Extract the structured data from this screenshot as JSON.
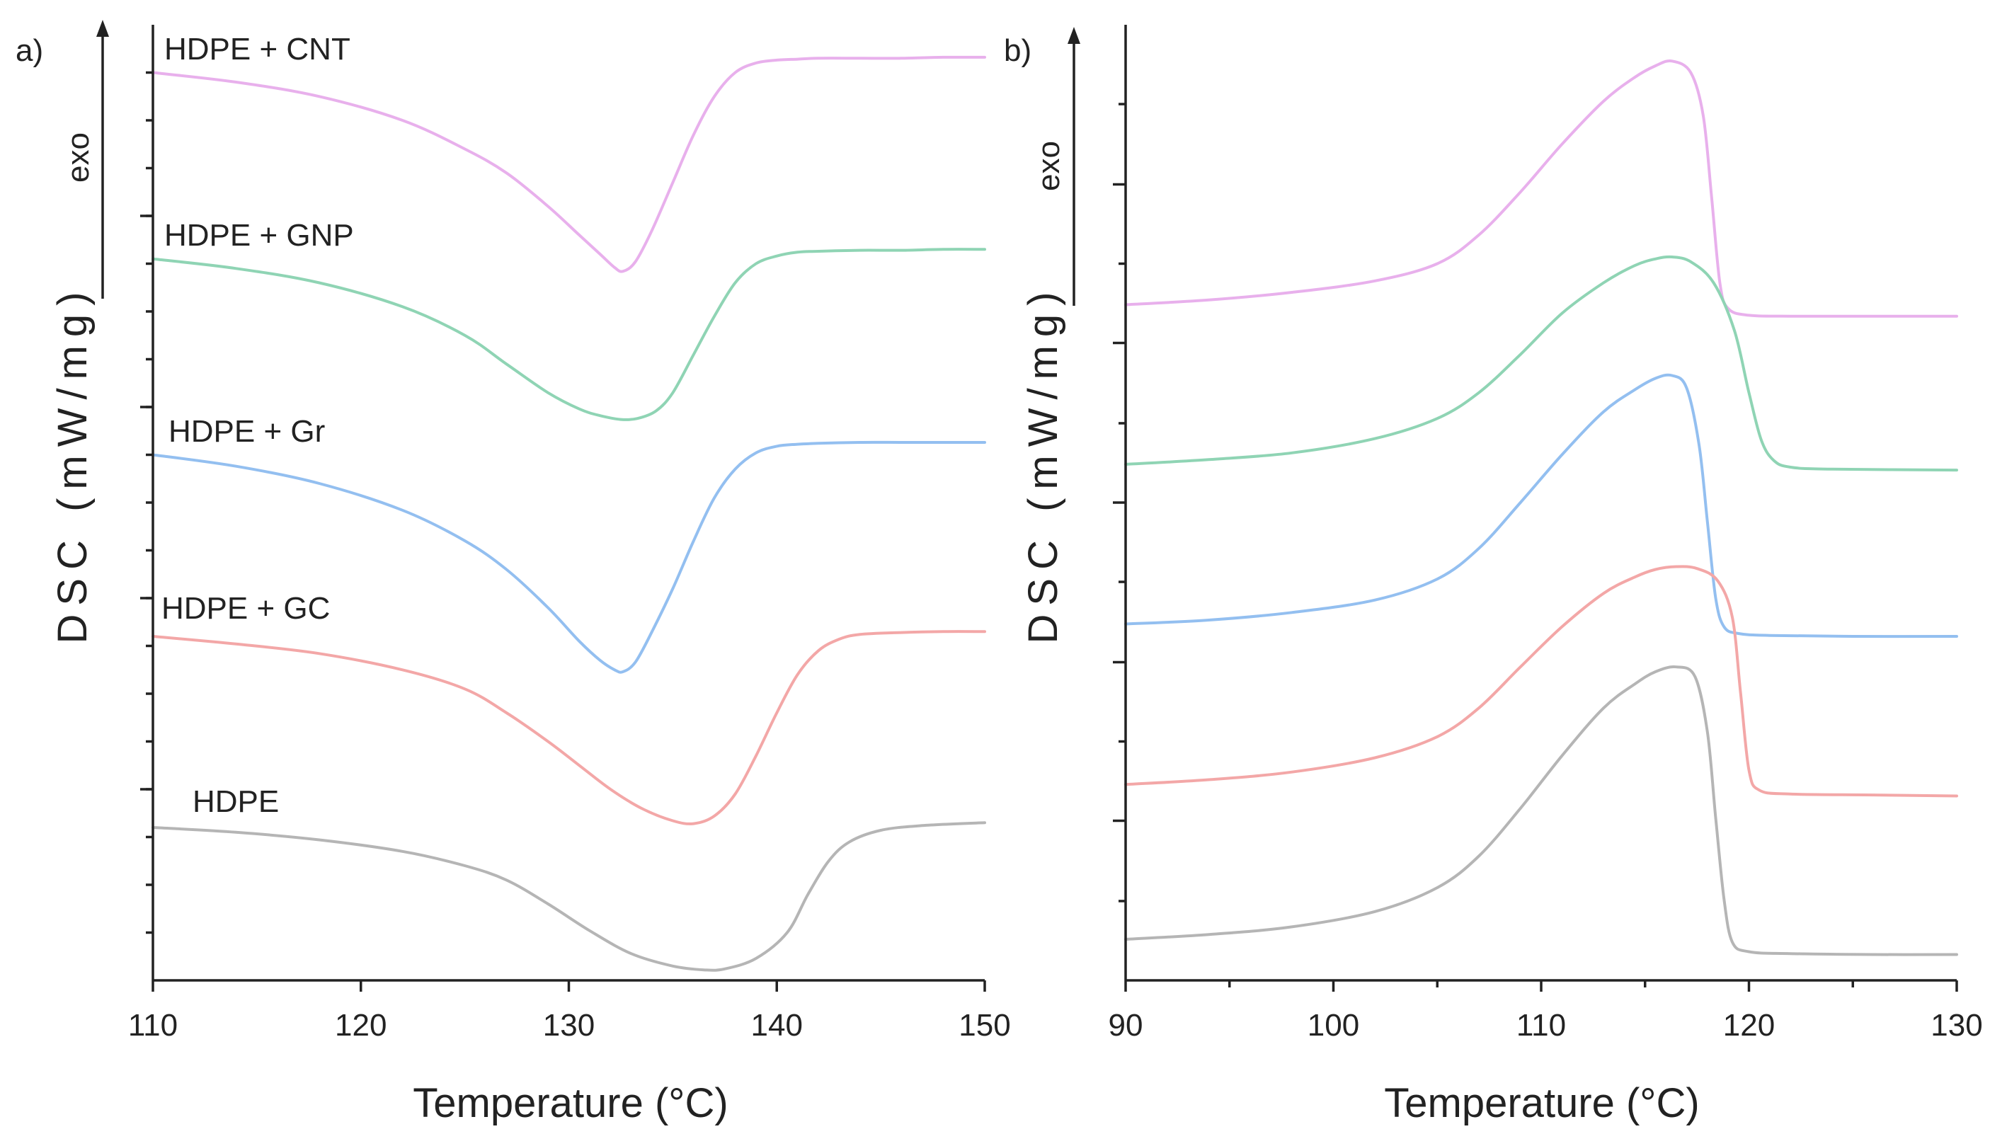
{
  "chart_data": [
    {
      "type": "line",
      "panel_label": "a)",
      "title": "",
      "xlabel": "Temperature (°C)",
      "ylabel": "DSC (mW/mg)",
      "exo_label": "exo",
      "xlim": [
        110,
        150
      ],
      "ylim": [
        0,
        10
      ],
      "xticks": [
        110,
        120,
        130,
        140,
        150
      ],
      "xtick_labels": [
        "110",
        "120",
        "130",
        "140",
        "150"
      ],
      "yticks_minor": [
        0.5,
        1,
        1.5,
        2,
        2.5,
        3,
        3.5,
        4,
        4.5,
        5,
        5.5,
        6,
        6.5,
        7,
        7.5,
        8,
        8.5,
        9,
        9.5
      ],
      "yticks_major": [
        2,
        4,
        6,
        8
      ],
      "series": [
        {
          "name": "HDPE + CNT",
          "label": "HDPE + CNT",
          "color": "#e8b0ec",
          "x": [
            110,
            114,
            118,
            122,
            125,
            127,
            129,
            130.5,
            131.5,
            132.2,
            132.6,
            133.2,
            134,
            135,
            136,
            137,
            138,
            139,
            140,
            141,
            142,
            144,
            146,
            148,
            150
          ],
          "y": [
            9.5,
            9.4,
            9.25,
            9.0,
            8.7,
            8.45,
            8.1,
            7.8,
            7.6,
            7.46,
            7.42,
            7.52,
            7.85,
            8.35,
            8.85,
            9.25,
            9.5,
            9.6,
            9.63,
            9.64,
            9.65,
            9.65,
            9.65,
            9.66,
            9.66
          ]
        },
        {
          "name": "HDPE + GNP",
          "label": "HDPE + GNP",
          "color": "#8fd4b4",
          "x": [
            110,
            114,
            118,
            122,
            125,
            127,
            129,
            130.5,
            131.5,
            132.5,
            133.3,
            134.2,
            135,
            136,
            137,
            138,
            139,
            140,
            141,
            142,
            144,
            146,
            148,
            150
          ],
          "y": [
            7.55,
            7.45,
            7.3,
            7.05,
            6.75,
            6.45,
            6.15,
            5.98,
            5.91,
            5.87,
            5.88,
            5.96,
            6.15,
            6.55,
            6.95,
            7.3,
            7.5,
            7.58,
            7.62,
            7.63,
            7.64,
            7.64,
            7.65,
            7.65
          ]
        },
        {
          "name": "HDPE + Gr",
          "label": "HDPE + Gr",
          "color": "#93bff0",
          "x": [
            110,
            114,
            118,
            122,
            125,
            127,
            129,
            130.5,
            131.5,
            132.2,
            132.6,
            133.2,
            134,
            135,
            136,
            137,
            138,
            139,
            140,
            141,
            142,
            144,
            146,
            148,
            150
          ],
          "y": [
            5.5,
            5.38,
            5.2,
            4.92,
            4.6,
            4.3,
            3.9,
            3.55,
            3.35,
            3.25,
            3.23,
            3.33,
            3.65,
            4.1,
            4.6,
            5.05,
            5.35,
            5.52,
            5.59,
            5.61,
            5.62,
            5.63,
            5.63,
            5.63,
            5.63
          ]
        },
        {
          "name": "HDPE + GC",
          "label": "HDPE + GC",
          "color": "#f3a7a7",
          "x": [
            110,
            114,
            118,
            122,
            125,
            127,
            129,
            130.5,
            132,
            133.5,
            135,
            136,
            137,
            138,
            139,
            140,
            141,
            142,
            143,
            144,
            146,
            148,
            150
          ],
          "y": [
            3.6,
            3.52,
            3.42,
            3.25,
            3.05,
            2.8,
            2.5,
            2.25,
            2.0,
            1.8,
            1.67,
            1.64,
            1.72,
            1.95,
            2.35,
            2.8,
            3.2,
            3.45,
            3.57,
            3.62,
            3.64,
            3.65,
            3.65
          ]
        },
        {
          "name": "HDPE",
          "label": "HDPE",
          "color": "#b5b5b5",
          "x": [
            110,
            114,
            118,
            122,
            125,
            127,
            129,
            131,
            133,
            135,
            136.5,
            137.5,
            139,
            140.5,
            141.5,
            142.5,
            143.5,
            145,
            147,
            150
          ],
          "y": [
            1.6,
            1.55,
            1.47,
            1.35,
            1.2,
            1.05,
            0.8,
            0.52,
            0.28,
            0.15,
            0.11,
            0.12,
            0.23,
            0.5,
            0.9,
            1.25,
            1.45,
            1.57,
            1.62,
            1.65
          ]
        }
      ]
    },
    {
      "type": "line",
      "panel_label": "b)",
      "title": "",
      "xlabel": "Temperature (°C)",
      "ylabel": "DSC (mW/mg)",
      "exo_label": "exo",
      "xlim": [
        90,
        130
      ],
      "ylim": [
        0,
        10
      ],
      "xticks": [
        90,
        100,
        110,
        120,
        130
      ],
      "xtick_labels": [
        "90",
        "100",
        "110",
        "120",
        "130"
      ],
      "xticks_minor": [
        95,
        105,
        115,
        125
      ],
      "yticks_minor": [
        0.83,
        2.5,
        4.17,
        5.83,
        7.5,
        9.17
      ],
      "yticks_major": [
        1.67,
        3.33,
        5.0,
        6.67,
        8.33
      ],
      "series": [
        {
          "name": "HDPE + CNT",
          "color": "#e8b0ec",
          "x": [
            90,
            94,
            98,
            102,
            105,
            107,
            109,
            111,
            113,
            114.5,
            115.5,
            116.3,
            117.2,
            117.8,
            118.2,
            118.6,
            119,
            120,
            122,
            126,
            130
          ],
          "y": [
            7.07,
            7.12,
            7.2,
            7.32,
            7.5,
            7.8,
            8.25,
            8.75,
            9.2,
            9.45,
            9.57,
            9.62,
            9.5,
            9.05,
            8.2,
            7.3,
            7.03,
            6.96,
            6.95,
            6.95,
            6.95
          ]
        },
        {
          "name": "HDPE + GNP",
          "color": "#8fd4b4",
          "x": [
            90,
            94,
            98,
            102,
            105,
            107,
            109,
            111,
            113,
            114.5,
            115.5,
            116.3,
            117.2,
            118.3,
            119.3,
            120,
            120.6,
            121.2,
            122,
            124,
            130
          ],
          "y": [
            5.4,
            5.45,
            5.52,
            5.67,
            5.88,
            6.15,
            6.55,
            6.98,
            7.3,
            7.48,
            7.55,
            7.57,
            7.52,
            7.3,
            6.8,
            6.15,
            5.65,
            5.44,
            5.37,
            5.35,
            5.34
          ]
        },
        {
          "name": "HDPE + Gr",
          "color": "#93bff0",
          "x": [
            90,
            94,
            98,
            102,
            105,
            107,
            109,
            111,
            113,
            114.5,
            115.5,
            116.3,
            117,
            117.6,
            118,
            118.4,
            118.8,
            119.5,
            121,
            125,
            130
          ],
          "y": [
            3.73,
            3.77,
            3.85,
            3.98,
            4.2,
            4.52,
            5.0,
            5.5,
            5.95,
            6.18,
            6.3,
            6.33,
            6.2,
            5.6,
            4.8,
            4.0,
            3.7,
            3.63,
            3.61,
            3.6,
            3.6
          ]
        },
        {
          "name": "HDPE + GC",
          "color": "#f3a7a7",
          "x": [
            90,
            94,
            98,
            102,
            105,
            107,
            109,
            111,
            113,
            114.5,
            115.5,
            116.5,
            117.5,
            118.5,
            119.2,
            119.6,
            120,
            120.5,
            122,
            126,
            130
          ],
          "y": [
            2.05,
            2.1,
            2.18,
            2.33,
            2.55,
            2.85,
            3.28,
            3.7,
            4.05,
            4.22,
            4.3,
            4.33,
            4.31,
            4.18,
            3.8,
            3.0,
            2.2,
            1.99,
            1.95,
            1.94,
            1.93
          ]
        },
        {
          "name": "HDPE",
          "color": "#b5b5b5",
          "x": [
            90,
            94,
            98,
            102,
            105,
            107,
            109,
            111,
            113,
            114.5,
            115.5,
            116.5,
            117.4,
            118,
            118.4,
            118.8,
            119.2,
            120,
            122,
            126,
            130
          ],
          "y": [
            0.43,
            0.48,
            0.56,
            0.72,
            0.97,
            1.3,
            1.8,
            2.35,
            2.85,
            3.1,
            3.23,
            3.28,
            3.18,
            2.6,
            1.7,
            0.85,
            0.4,
            0.3,
            0.28,
            0.27,
            0.27
          ]
        }
      ]
    }
  ]
}
